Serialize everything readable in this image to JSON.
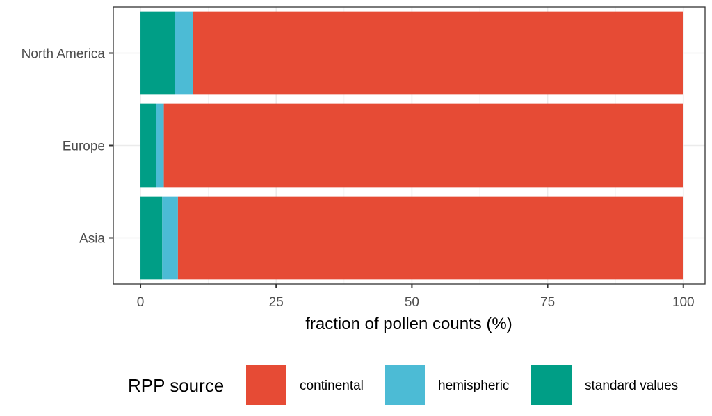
{
  "chart_data": {
    "type": "bar",
    "orientation": "horizontal",
    "stacked": true,
    "categories": [
      "North America",
      "Europe",
      "Asia"
    ],
    "series": [
      {
        "name": "standard values",
        "color": "#009E86",
        "values": [
          6.3,
          2.9,
          4.0
        ]
      },
      {
        "name": "hemispheric",
        "color": "#4CBBD5",
        "values": [
          3.4,
          1.4,
          2.9
        ]
      },
      {
        "name": "continental",
        "color": "#E64B35",
        "values": [
          90.3,
          95.7,
          93.1
        ]
      }
    ],
    "xlim": [
      -5,
      104
    ],
    "xticks": [
      "0",
      "25",
      "50",
      "75",
      "100"
    ],
    "xtick_values": [
      0,
      25,
      50,
      75,
      100
    ],
    "xlabel": "fraction of pollen counts (%)",
    "ylabel": "",
    "title": "",
    "grid": true,
    "theme": "bw",
    "legend": {
      "title": "RPP source",
      "position": "bottom",
      "entries": [
        {
          "label": "continental",
          "color": "#E64B35"
        },
        {
          "label": "hemispheric",
          "color": "#4CBBD5"
        },
        {
          "label": "standard values",
          "color": "#009E86"
        }
      ]
    }
  }
}
